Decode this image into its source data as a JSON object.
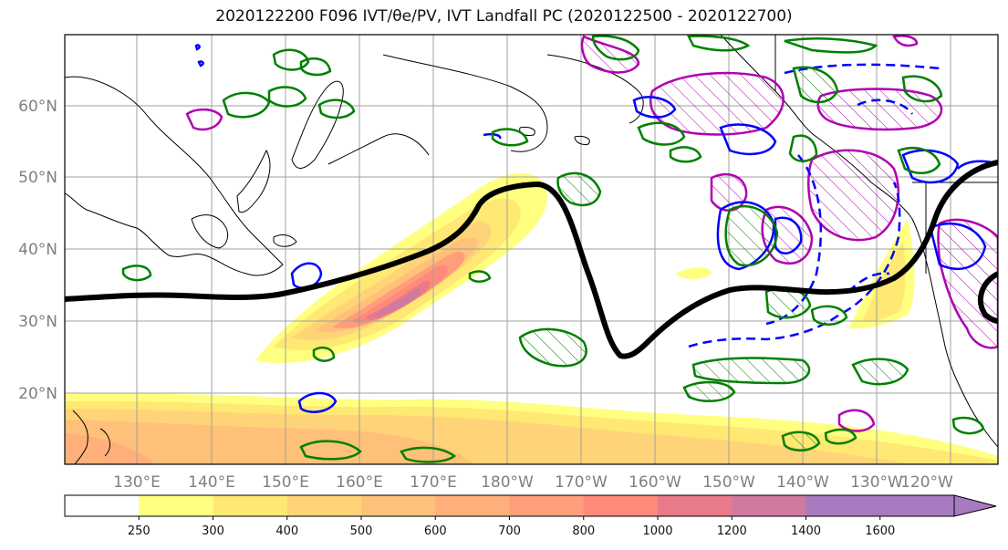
{
  "title": "2020122200 F096 IVT/θe/PV, IVT Landfall PC (2020122500 - 2020122700)",
  "lat_labels": [
    "60°N",
    "50°N",
    "40°N",
    "30°N",
    "20°N"
  ],
  "lon_labels": [
    "130°E",
    "140°E",
    "150°E",
    "160°E",
    "170°E",
    "180°W",
    "170°W",
    "160°W",
    "150°W",
    "140°W",
    "130°W",
    "120°W"
  ],
  "colorbar": {
    "tick_labels": [
      "250",
      "300",
      "400",
      "500",
      "600",
      "700",
      "800",
      "1000",
      "1200",
      "1400",
      "1600"
    ],
    "colors": [
      "#ffffff",
      "#ffff80",
      "#ffe873",
      "#ffd478",
      "#ffc07a",
      "#ffb07a",
      "#ff9e7a",
      "#ff8a7a",
      "#e87a8a",
      "#d07aa0",
      "#a87ac0"
    ]
  },
  "contour_colors": {
    "pv": "#008000",
    "theta_e": "#0000ff",
    "landfall_pc": "#b000b0",
    "jet_axis": "#000000"
  }
}
